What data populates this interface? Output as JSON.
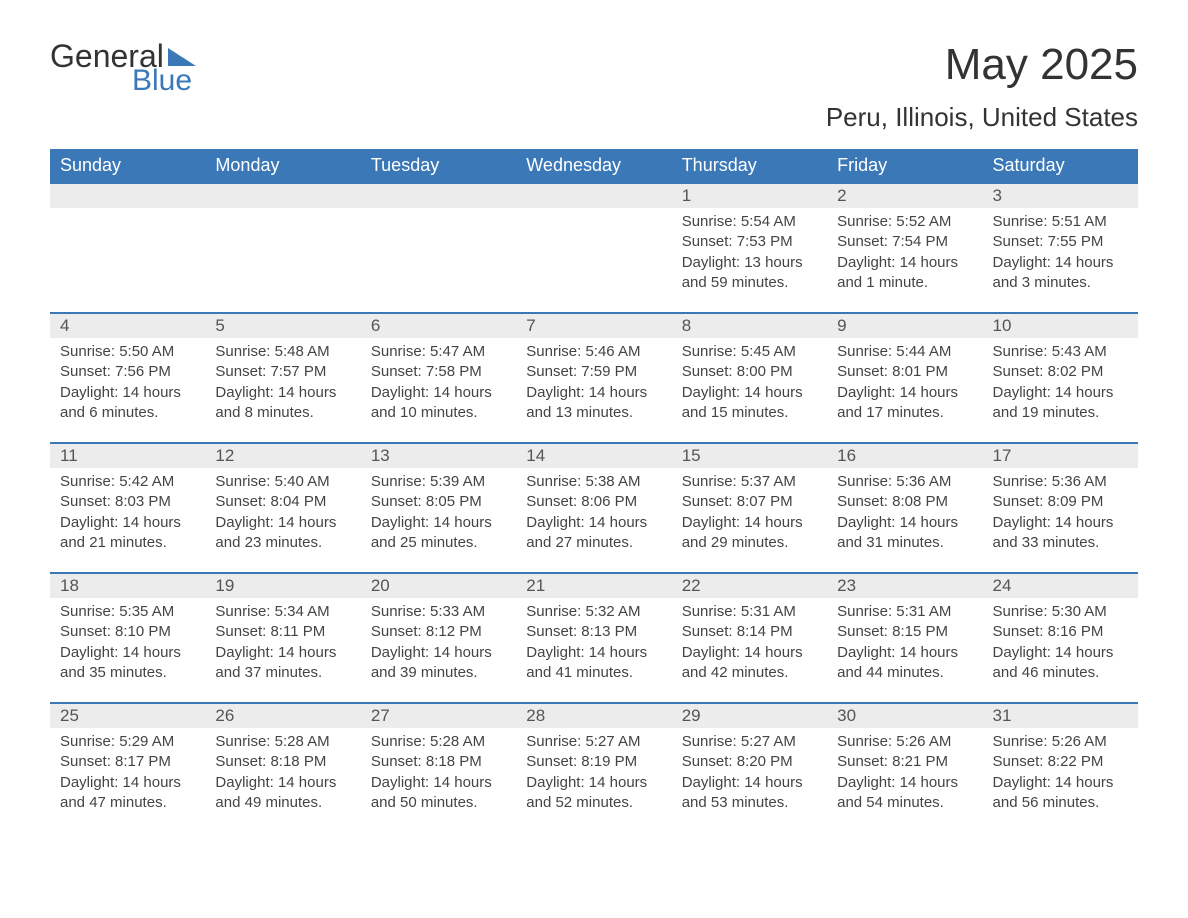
{
  "logo": {
    "word1": "General",
    "word2": "Blue",
    "text_color": "#333333",
    "accent_color": "#3b78b8"
  },
  "title": "May 2025",
  "location": "Peru, Illinois, United States",
  "colors": {
    "header_bg": "#3b78b8",
    "header_text": "#ffffff",
    "daynum_bg": "#ececec",
    "border": "#3b78b8",
    "body_text": "#444444"
  },
  "day_headers": [
    "Sunday",
    "Monday",
    "Tuesday",
    "Wednesday",
    "Thursday",
    "Friday",
    "Saturday"
  ],
  "weeks": [
    [
      {
        "day": "",
        "sunrise": "",
        "sunset": "",
        "daylight": ""
      },
      {
        "day": "",
        "sunrise": "",
        "sunset": "",
        "daylight": ""
      },
      {
        "day": "",
        "sunrise": "",
        "sunset": "",
        "daylight": ""
      },
      {
        "day": "",
        "sunrise": "",
        "sunset": "",
        "daylight": ""
      },
      {
        "day": "1",
        "sunrise": "Sunrise: 5:54 AM",
        "sunset": "Sunset: 7:53 PM",
        "daylight": "Daylight: 13 hours and 59 minutes."
      },
      {
        "day": "2",
        "sunrise": "Sunrise: 5:52 AM",
        "sunset": "Sunset: 7:54 PM",
        "daylight": "Daylight: 14 hours and 1 minute."
      },
      {
        "day": "3",
        "sunrise": "Sunrise: 5:51 AM",
        "sunset": "Sunset: 7:55 PM",
        "daylight": "Daylight: 14 hours and 3 minutes."
      }
    ],
    [
      {
        "day": "4",
        "sunrise": "Sunrise: 5:50 AM",
        "sunset": "Sunset: 7:56 PM",
        "daylight": "Daylight: 14 hours and 6 minutes."
      },
      {
        "day": "5",
        "sunrise": "Sunrise: 5:48 AM",
        "sunset": "Sunset: 7:57 PM",
        "daylight": "Daylight: 14 hours and 8 minutes."
      },
      {
        "day": "6",
        "sunrise": "Sunrise: 5:47 AM",
        "sunset": "Sunset: 7:58 PM",
        "daylight": "Daylight: 14 hours and 10 minutes."
      },
      {
        "day": "7",
        "sunrise": "Sunrise: 5:46 AM",
        "sunset": "Sunset: 7:59 PM",
        "daylight": "Daylight: 14 hours and 13 minutes."
      },
      {
        "day": "8",
        "sunrise": "Sunrise: 5:45 AM",
        "sunset": "Sunset: 8:00 PM",
        "daylight": "Daylight: 14 hours and 15 minutes."
      },
      {
        "day": "9",
        "sunrise": "Sunrise: 5:44 AM",
        "sunset": "Sunset: 8:01 PM",
        "daylight": "Daylight: 14 hours and 17 minutes."
      },
      {
        "day": "10",
        "sunrise": "Sunrise: 5:43 AM",
        "sunset": "Sunset: 8:02 PM",
        "daylight": "Daylight: 14 hours and 19 minutes."
      }
    ],
    [
      {
        "day": "11",
        "sunrise": "Sunrise: 5:42 AM",
        "sunset": "Sunset: 8:03 PM",
        "daylight": "Daylight: 14 hours and 21 minutes."
      },
      {
        "day": "12",
        "sunrise": "Sunrise: 5:40 AM",
        "sunset": "Sunset: 8:04 PM",
        "daylight": "Daylight: 14 hours and 23 minutes."
      },
      {
        "day": "13",
        "sunrise": "Sunrise: 5:39 AM",
        "sunset": "Sunset: 8:05 PM",
        "daylight": "Daylight: 14 hours and 25 minutes."
      },
      {
        "day": "14",
        "sunrise": "Sunrise: 5:38 AM",
        "sunset": "Sunset: 8:06 PM",
        "daylight": "Daylight: 14 hours and 27 minutes."
      },
      {
        "day": "15",
        "sunrise": "Sunrise: 5:37 AM",
        "sunset": "Sunset: 8:07 PM",
        "daylight": "Daylight: 14 hours and 29 minutes."
      },
      {
        "day": "16",
        "sunrise": "Sunrise: 5:36 AM",
        "sunset": "Sunset: 8:08 PM",
        "daylight": "Daylight: 14 hours and 31 minutes."
      },
      {
        "day": "17",
        "sunrise": "Sunrise: 5:36 AM",
        "sunset": "Sunset: 8:09 PM",
        "daylight": "Daylight: 14 hours and 33 minutes."
      }
    ],
    [
      {
        "day": "18",
        "sunrise": "Sunrise: 5:35 AM",
        "sunset": "Sunset: 8:10 PM",
        "daylight": "Daylight: 14 hours and 35 minutes."
      },
      {
        "day": "19",
        "sunrise": "Sunrise: 5:34 AM",
        "sunset": "Sunset: 8:11 PM",
        "daylight": "Daylight: 14 hours and 37 minutes."
      },
      {
        "day": "20",
        "sunrise": "Sunrise: 5:33 AM",
        "sunset": "Sunset: 8:12 PM",
        "daylight": "Daylight: 14 hours and 39 minutes."
      },
      {
        "day": "21",
        "sunrise": "Sunrise: 5:32 AM",
        "sunset": "Sunset: 8:13 PM",
        "daylight": "Daylight: 14 hours and 41 minutes."
      },
      {
        "day": "22",
        "sunrise": "Sunrise: 5:31 AM",
        "sunset": "Sunset: 8:14 PM",
        "daylight": "Daylight: 14 hours and 42 minutes."
      },
      {
        "day": "23",
        "sunrise": "Sunrise: 5:31 AM",
        "sunset": "Sunset: 8:15 PM",
        "daylight": "Daylight: 14 hours and 44 minutes."
      },
      {
        "day": "24",
        "sunrise": "Sunrise: 5:30 AM",
        "sunset": "Sunset: 8:16 PM",
        "daylight": "Daylight: 14 hours and 46 minutes."
      }
    ],
    [
      {
        "day": "25",
        "sunrise": "Sunrise: 5:29 AM",
        "sunset": "Sunset: 8:17 PM",
        "daylight": "Daylight: 14 hours and 47 minutes."
      },
      {
        "day": "26",
        "sunrise": "Sunrise: 5:28 AM",
        "sunset": "Sunset: 8:18 PM",
        "daylight": "Daylight: 14 hours and 49 minutes."
      },
      {
        "day": "27",
        "sunrise": "Sunrise: 5:28 AM",
        "sunset": "Sunset: 8:18 PM",
        "daylight": "Daylight: 14 hours and 50 minutes."
      },
      {
        "day": "28",
        "sunrise": "Sunrise: 5:27 AM",
        "sunset": "Sunset: 8:19 PM",
        "daylight": "Daylight: 14 hours and 52 minutes."
      },
      {
        "day": "29",
        "sunrise": "Sunrise: 5:27 AM",
        "sunset": "Sunset: 8:20 PM",
        "daylight": "Daylight: 14 hours and 53 minutes."
      },
      {
        "day": "30",
        "sunrise": "Sunrise: 5:26 AM",
        "sunset": "Sunset: 8:21 PM",
        "daylight": "Daylight: 14 hours and 54 minutes."
      },
      {
        "day": "31",
        "sunrise": "Sunrise: 5:26 AM",
        "sunset": "Sunset: 8:22 PM",
        "daylight": "Daylight: 14 hours and 56 minutes."
      }
    ]
  ]
}
